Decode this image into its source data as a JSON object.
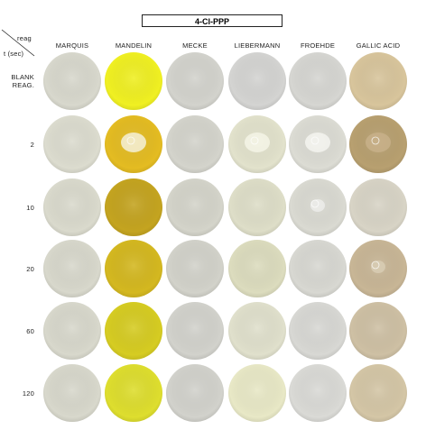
{
  "title": "4-Cl-PPP",
  "corner": {
    "top": "reag",
    "bottom": "t (sec)"
  },
  "columns": [
    "MARQUIS",
    "MANDELIN",
    "MECKE",
    "LIEBERMANN",
    "FROEHDE",
    "GALLIC ACID"
  ],
  "rows": [
    "BLANK REAG.",
    2,
    10,
    20,
    60,
    120
  ]
}
